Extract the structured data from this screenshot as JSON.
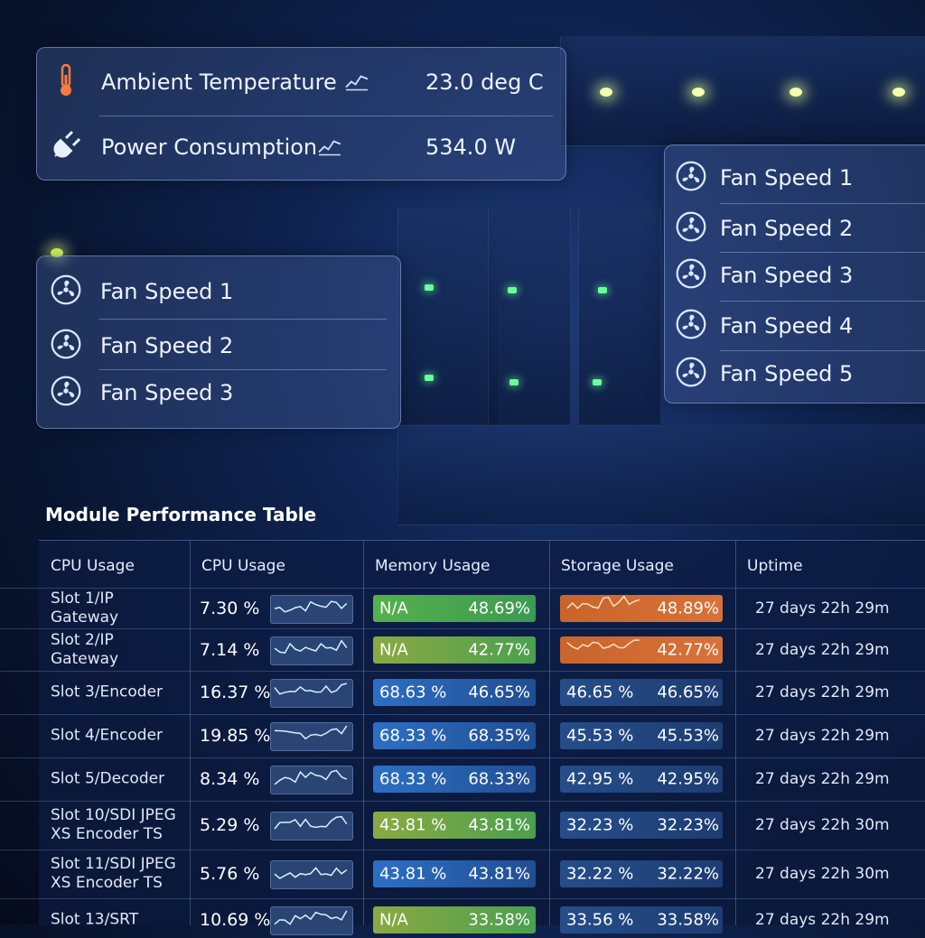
{
  "environment_panel": {
    "rows": [
      {
        "label": "Ambient Temperature",
        "value": "23.0 deg C"
      },
      {
        "label": "Power Consumption",
        "value": "534.0 W"
      }
    ]
  },
  "fan_panel_left": {
    "items": [
      "Fan Speed 1",
      "Fan Speed 2",
      "Fan Speed 3"
    ]
  },
  "fan_panel_right": {
    "items": [
      "Fan Speed 1",
      "Fan Speed 2",
      "Fan Speed 3",
      "Fan Speed 4",
      "Fan Speed 5"
    ]
  },
  "table": {
    "title": "Module Performance Table",
    "headers": [
      "CPU Usage",
      "CPU Usage",
      "Memory Usage",
      "Storage Usage",
      "Uptime"
    ],
    "rows": [
      {
        "module": "Slot 1/IP Gateway",
        "cpu": "7.30 %",
        "memory": {
          "a": "N/A",
          "b": "48.69%"
        },
        "storage": {
          "b": "48.89%"
        },
        "uptime": "27 days 22h 29m"
      },
      {
        "module": "Slot 2/IP Gateway",
        "cpu": "7.14 %",
        "memory": {
          "a": "N/A",
          "b": "42.77%"
        },
        "storage": {
          "b": "42.77%"
        },
        "uptime": "27 days 22h 29m"
      },
      {
        "module": "Slot 3/Encoder",
        "cpu": "16.37 %",
        "memory": {
          "a": "68.63 %",
          "b": "46.65%"
        },
        "storage": {
          "a": "46.65 %",
          "b": "46.65%"
        },
        "uptime": "27 days 22h 29m"
      },
      {
        "module": "Slot 4/Encoder",
        "cpu": "19.85 %",
        "memory": {
          "a": "68.33 %",
          "b": "68.35%"
        },
        "storage": {
          "a": "45.53 %",
          "b": "45.53%"
        },
        "uptime": "27 days 22h 29m"
      },
      {
        "module": "Slot 5/Decoder",
        "cpu": "8.34 %",
        "memory": {
          "a": "68.33 %",
          "b": "68.33%"
        },
        "storage": {
          "a": "42.95 %",
          "b": "42.95%"
        },
        "uptime": "27 days 22h 29m"
      },
      {
        "module": "Slot 10/SDI JPEG XS Encoder TS",
        "cpu": "5.29 %",
        "memory": {
          "a": "43.81 %",
          "b": "43.81%"
        },
        "storage": {
          "a": "32.23 %",
          "b": "32.23%"
        },
        "uptime": "27 days 22h 30m"
      },
      {
        "module": "Slot 11/SDI JPEG XS Encoder TS",
        "cpu": "5.76 %",
        "memory": {
          "a": "43.81 %",
          "b": "43.81%"
        },
        "storage": {
          "a": "32.22 %",
          "b": "32.22%"
        },
        "uptime": "27 days 22h 30m"
      },
      {
        "module": "Slot 13/SRT",
        "cpu": "10.69 %",
        "memory": {
          "a": "N/A",
          "b": "33.58%"
        },
        "storage": {
          "a": "33.56 %",
          "b": "33.58%"
        },
        "uptime": "27 days 22h 29m"
      }
    ]
  }
}
